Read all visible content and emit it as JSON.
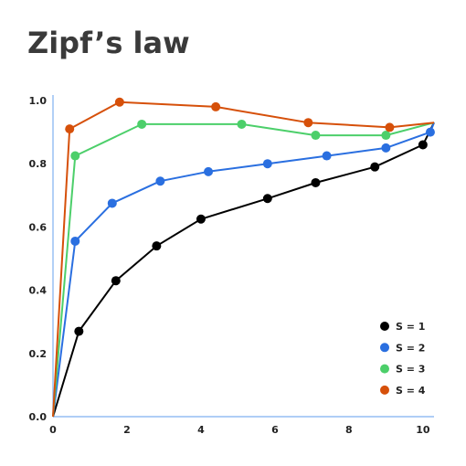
{
  "chart_data": {
    "type": "line",
    "title": "Zipf’s law",
    "xlabel": "",
    "ylabel": "",
    "xlim": [
      0,
      10.3
    ],
    "ylim": [
      0,
      1.0
    ],
    "x_ticks": [
      "0",
      "2",
      "4",
      "6",
      "8",
      "10"
    ],
    "y_ticks": [
      "0.0",
      "0.2",
      "0.4",
      "0.6",
      "0.8",
      "1.0"
    ],
    "grid": false,
    "legend_position": "bottom-right",
    "series": [
      {
        "name": "S = 1",
        "color": "#000000",
        "points": [
          [
            0,
            0
          ],
          [
            0.7,
            0.27
          ],
          [
            1.7,
            0.43
          ],
          [
            2.8,
            0.54
          ],
          [
            4.0,
            0.625
          ],
          [
            5.8,
            0.69
          ],
          [
            7.1,
            0.74
          ],
          [
            8.7,
            0.79
          ],
          [
            10.0,
            0.86
          ],
          [
            10.3,
            0.93
          ]
        ]
      },
      {
        "name": "S = 2",
        "color": "#2a6fe0",
        "points": [
          [
            0,
            0
          ],
          [
            0.6,
            0.555
          ],
          [
            1.6,
            0.675
          ],
          [
            2.9,
            0.745
          ],
          [
            4.2,
            0.775
          ],
          [
            5.8,
            0.8
          ],
          [
            7.4,
            0.825
          ],
          [
            9.0,
            0.85
          ],
          [
            10.2,
            0.9
          ],
          [
            10.3,
            0.93
          ]
        ]
      },
      {
        "name": "S = 3",
        "color": "#4ccf6a",
        "points": [
          [
            0,
            0
          ],
          [
            0.6,
            0.825
          ],
          [
            2.4,
            0.925
          ],
          [
            5.1,
            0.925
          ],
          [
            7.1,
            0.89
          ],
          [
            9.0,
            0.89
          ],
          [
            10.3,
            0.93
          ]
        ]
      },
      {
        "name": "S = 4",
        "color": "#d6500a",
        "points": [
          [
            0,
            0
          ],
          [
            0.45,
            0.91
          ],
          [
            1.8,
            0.995
          ],
          [
            4.4,
            0.98
          ],
          [
            6.9,
            0.93
          ],
          [
            9.1,
            0.915
          ],
          [
            10.3,
            0.93
          ]
        ]
      }
    ]
  }
}
